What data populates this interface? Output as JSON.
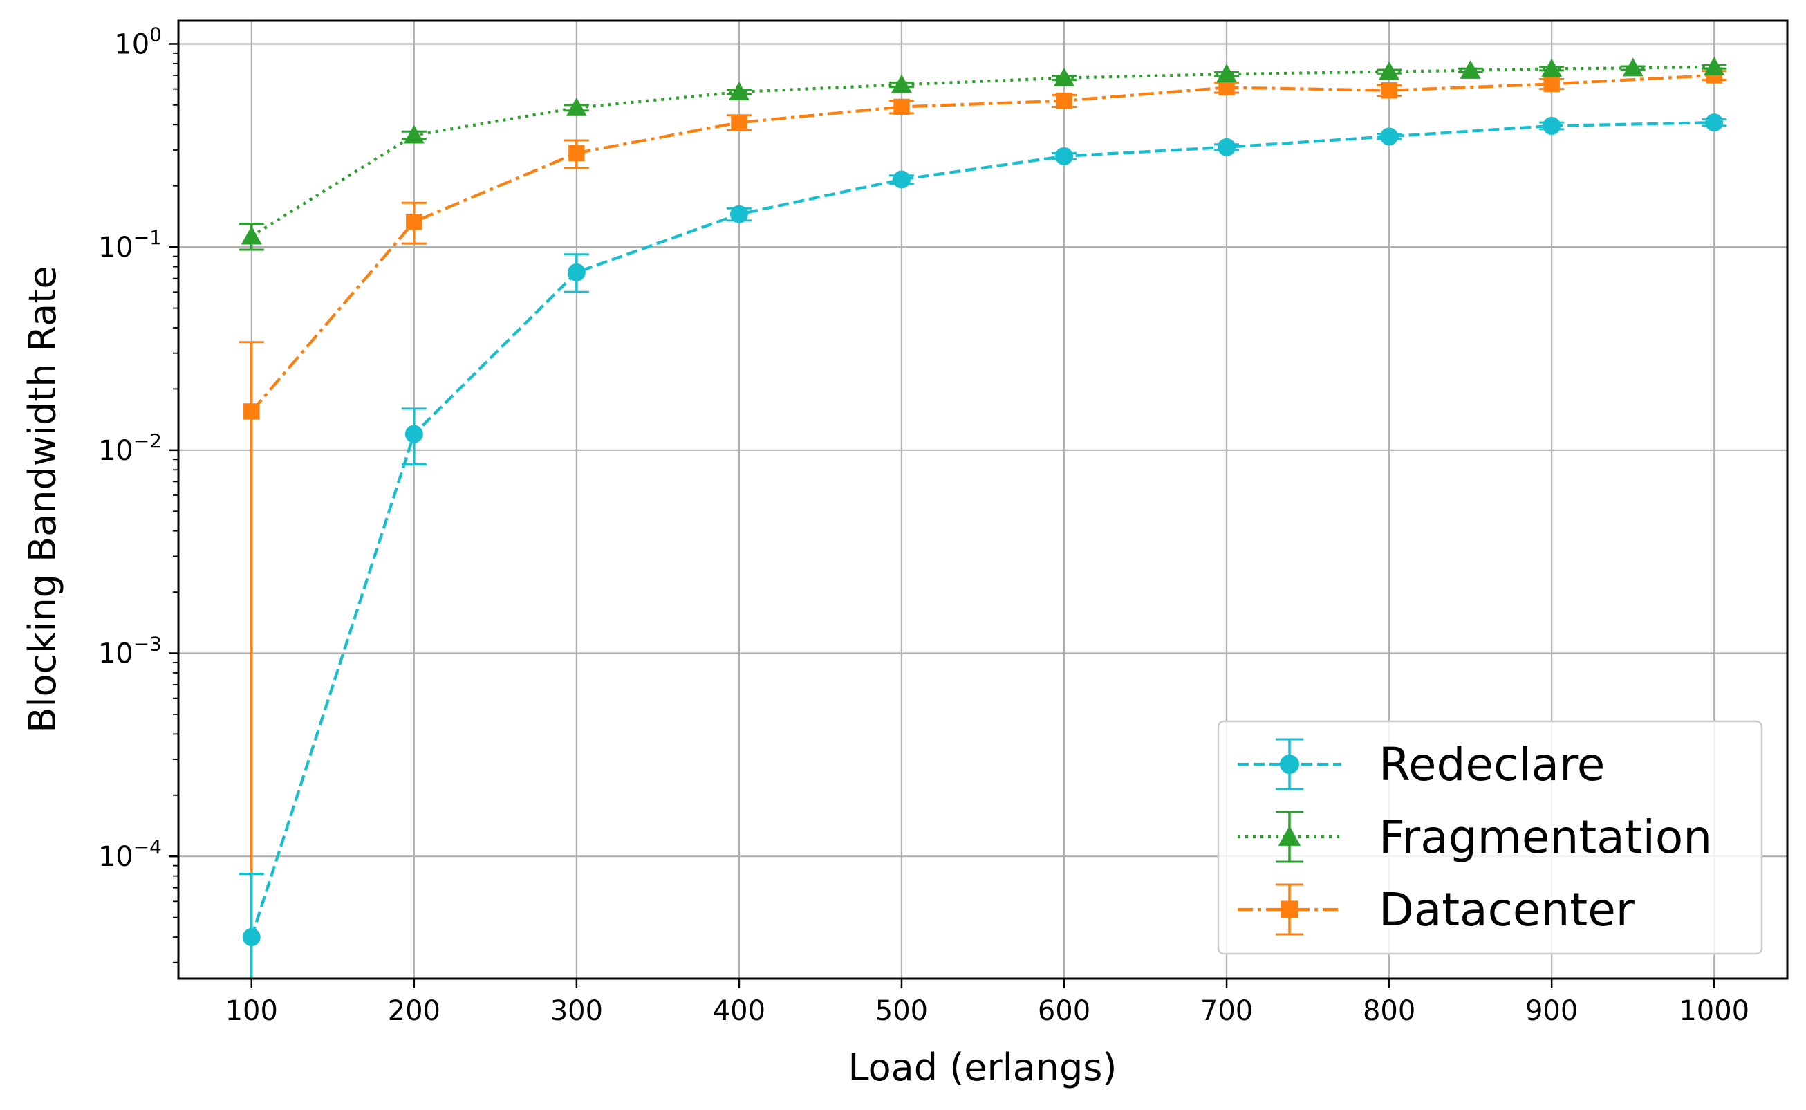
{
  "chart_data": {
    "type": "line",
    "xlabel": "Load (erlangs)",
    "ylabel": "Blocking Bandwidth Rate",
    "xlim": [
      55,
      1045
    ],
    "ylim": [
      2.5e-05,
      1.3
    ],
    "yscale": "log",
    "grid": true,
    "legend_position": "lower-right",
    "x_ticks": [
      100,
      200,
      300,
      400,
      500,
      600,
      700,
      800,
      900,
      1000
    ],
    "y_ticks": [
      {
        "value": 0.0001,
        "base": "10",
        "exp": "−4"
      },
      {
        "value": 0.001,
        "base": "10",
        "exp": "−3"
      },
      {
        "value": 0.01,
        "base": "10",
        "exp": "−2"
      },
      {
        "value": 0.1,
        "base": "10",
        "exp": "−1"
      },
      {
        "value": 1,
        "base": "10",
        "exp": "0"
      }
    ],
    "series": [
      {
        "name": "Redeclare",
        "color": "#17becf",
        "marker": "circle",
        "line_style": "dashed",
        "x": [
          100,
          200,
          300,
          400,
          500,
          600,
          700,
          800,
          900,
          1000
        ],
        "y": [
          4e-05,
          0.012,
          0.075,
          0.145,
          0.215,
          0.28,
          0.31,
          0.35,
          0.395,
          0.41
        ],
        "err_low": [
          1e-07,
          0.0085,
          0.06,
          0.135,
          0.205,
          0.27,
          0.3,
          0.34,
          0.38,
          0.395
        ],
        "err_high": [
          8.2e-05,
          0.016,
          0.092,
          0.155,
          0.225,
          0.29,
          0.32,
          0.36,
          0.41,
          0.425
        ]
      },
      {
        "name": "Fragmentation",
        "color": "#2ca02c",
        "marker": "triangle",
        "line_style": "dotted",
        "x": [
          100,
          200,
          300,
          400,
          500,
          600,
          700,
          800,
          850,
          900,
          950,
          1000
        ],
        "y": [
          0.113,
          0.355,
          0.485,
          0.58,
          0.63,
          0.68,
          0.71,
          0.73,
          0.74,
          0.755,
          0.76,
          0.77
        ],
        "err_low": [
          0.097,
          0.34,
          0.47,
          0.565,
          0.615,
          0.665,
          0.695,
          0.715,
          0.725,
          0.74,
          0.745,
          0.755
        ],
        "err_high": [
          0.13,
          0.37,
          0.5,
          0.595,
          0.645,
          0.695,
          0.725,
          0.745,
          0.755,
          0.77,
          0.775,
          0.785
        ]
      },
      {
        "name": "Datacenter",
        "color": "#ff7f0e",
        "marker": "square",
        "line_style": "dashdot",
        "x": [
          100,
          200,
          300,
          400,
          500,
          600,
          700,
          800,
          900,
          1000
        ],
        "y": [
          0.0155,
          0.133,
          0.29,
          0.41,
          0.49,
          0.525,
          0.61,
          0.59,
          0.635,
          0.7
        ],
        "err_low": [
          1e-07,
          0.104,
          0.245,
          0.375,
          0.455,
          0.49,
          0.575,
          0.555,
          0.6,
          0.665
        ],
        "err_high": [
          0.034,
          0.165,
          0.335,
          0.445,
          0.525,
          0.56,
          0.645,
          0.625,
          0.67,
          0.735
        ]
      }
    ]
  }
}
